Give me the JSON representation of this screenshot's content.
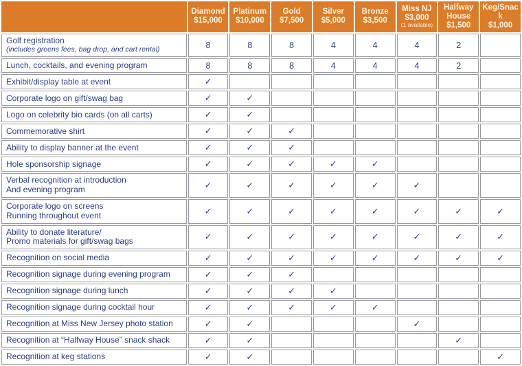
{
  "colors": {
    "header_bg": "#DC7C28",
    "header_text": "#FCF4E6",
    "body_text": "#2B3E82",
    "check": "#2E3F96",
    "grid_border": "#97999E"
  },
  "columns": [
    {
      "name": "Diamond",
      "price": "$15,000",
      "note": ""
    },
    {
      "name": "Platinum",
      "price": "$10,000",
      "note": ""
    },
    {
      "name": "Gold",
      "price": "$7,500",
      "note": ""
    },
    {
      "name": "Silver",
      "price": "$5,000",
      "note": ""
    },
    {
      "name": "Bronze",
      "price": "$3,500",
      "note": ""
    },
    {
      "name": "Miss NJ",
      "price": "$3,000",
      "note": "(1 available)"
    },
    {
      "name": "Halfway House",
      "price": "$1,500",
      "note": ""
    },
    {
      "name": "Keg/Snack",
      "price": "$1,000",
      "note": ""
    }
  ],
  "rows": [
    {
      "label": "Golf registration",
      "sublabel": "(includes greens fees, bag drop, and cart rental)",
      "cells": [
        "8",
        "8",
        "8",
        "4",
        "4",
        "4",
        "2",
        ""
      ]
    },
    {
      "label": "Lunch, cocktails, and evening program",
      "sublabel": "",
      "cells": [
        "8",
        "8",
        "8",
        "4",
        "4",
        "4",
        "2",
        ""
      ]
    },
    {
      "label": "Exhibit/display table at event",
      "sublabel": "",
      "cells": [
        "✓",
        "",
        "",
        "",
        "",
        "",
        "",
        ""
      ]
    },
    {
      "label": "Corporate logo on gift/swag bag",
      "sublabel": "",
      "cells": [
        "✓",
        "✓",
        "",
        "",
        "",
        "",
        "",
        ""
      ]
    },
    {
      "label": "Logo on celebrity bio cards (on all carts)",
      "sublabel": "",
      "cells": [
        "✓",
        "✓",
        "",
        "",
        "",
        "",
        "",
        ""
      ]
    },
    {
      "label": "Commemorative shirt",
      "sublabel": "",
      "cells": [
        "✓",
        "✓",
        "✓",
        "",
        "",
        "",
        "",
        ""
      ]
    },
    {
      "label": "Ability to display banner at the event",
      "sublabel": "",
      "cells": [
        "✓",
        "✓",
        "✓",
        "",
        "",
        "",
        "",
        ""
      ]
    },
    {
      "label": "Hole sponsorship signage",
      "sublabel": "",
      "cells": [
        "✓",
        "✓",
        "✓",
        "✓",
        "✓",
        "",
        "",
        ""
      ]
    },
    {
      "label": "Verbal recognition at introduction",
      "sublabel2": "And evening program",
      "cells": [
        "✓",
        "✓",
        "✓",
        "✓",
        "✓",
        "✓",
        "",
        ""
      ]
    },
    {
      "label": "Corporate logo on screens",
      "sublabel2": "Running throughout event",
      "cells": [
        "✓",
        "✓",
        "✓",
        "✓",
        "✓",
        "✓",
        "✓",
        "✓"
      ]
    },
    {
      "label": "Ability to donate literature/",
      "sublabel2": "Promo materials for gift/swag bags",
      "cells": [
        "✓",
        "✓",
        "✓",
        "✓",
        "✓",
        "✓",
        "✓",
        "✓"
      ]
    },
    {
      "label": "Recognition on social media",
      "sublabel": "",
      "cells": [
        "✓",
        "✓",
        "✓",
        "✓",
        "✓",
        "✓",
        "✓",
        "✓"
      ]
    },
    {
      "label": "Recognition signage during evening program",
      "sublabel": "",
      "cells": [
        "✓",
        "✓",
        "✓",
        "",
        "",
        "",
        "",
        ""
      ]
    },
    {
      "label": "Recognition signage during lunch",
      "sublabel": "",
      "cells": [
        "✓",
        "✓",
        "✓",
        "✓",
        "",
        "",
        "",
        ""
      ]
    },
    {
      "label": "Recognition signage during cocktail hour",
      "sublabel": "",
      "cells": [
        "✓",
        "✓",
        "✓",
        "✓",
        "✓",
        "",
        "",
        ""
      ]
    },
    {
      "label": "Recognition at Miss New Jersey photo station",
      "sublabel": "",
      "cells": [
        "✓",
        "✓",
        "",
        "",
        "",
        "✓",
        "",
        ""
      ]
    },
    {
      "label": "Recognition at “Halfway House” snack shack",
      "sublabel": "",
      "cells": [
        "✓",
        "✓",
        "",
        "",
        "",
        "",
        "✓",
        ""
      ]
    },
    {
      "label": "Recognition at keg stations",
      "sublabel": "",
      "cells": [
        "✓",
        "✓",
        "",
        "",
        "",
        "",
        "",
        "✓"
      ]
    }
  ]
}
